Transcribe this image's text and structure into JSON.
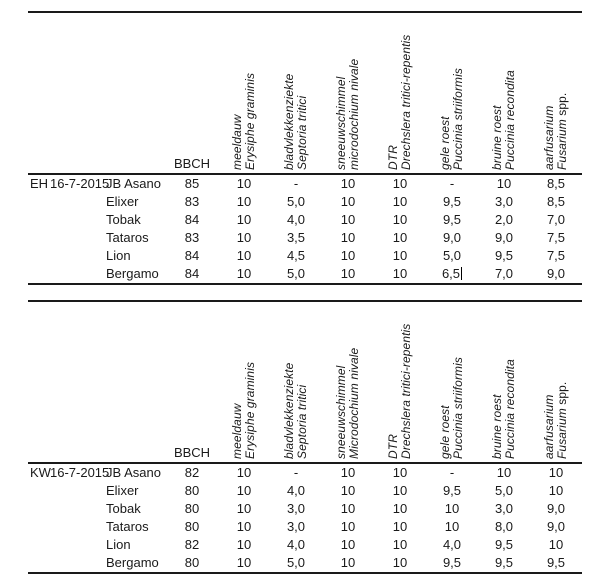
{
  "colors": {
    "background": "#ffffff",
    "text": "#1a1a1a",
    "rule": "#1a1a1a"
  },
  "tables": [
    {
      "site": "EH",
      "date": "16-7-2015",
      "bbch_label": "BBCH",
      "columns": [
        {
          "dutch": "meeldauw",
          "latin": "Erysiphe graminis"
        },
        {
          "dutch": "bladvlekkenziekte",
          "latin": "Septoria tritici"
        },
        {
          "dutch": "sneeuwschimmel",
          "latin": "microdochium nivale"
        },
        {
          "dutch": "DTR",
          "latin": "Drechslera tritici-repentis"
        },
        {
          "dutch": "gele roest",
          "latin": "Puccinia striiformis"
        },
        {
          "dutch": "bruine roest",
          "latin": "Puccinia recondita"
        },
        {
          "dutch": "aarfusarium",
          "latin": "Fusarium",
          "latin_suffix": "spp."
        }
      ],
      "rows": [
        {
          "variety": "JB Asano",
          "bbch": "85",
          "values": [
            "10",
            "-",
            "10",
            "10",
            "-",
            "10",
            "8,5"
          ]
        },
        {
          "variety": "Elixer",
          "bbch": "83",
          "values": [
            "10",
            "5,0",
            "10",
            "10",
            "9,5",
            "3,0",
            "8,5"
          ]
        },
        {
          "variety": "Tobak",
          "bbch": "84",
          "values": [
            "10",
            "4,0",
            "10",
            "10",
            "9,5",
            "2,0",
            "7,0"
          ]
        },
        {
          "variety": "Tataros",
          "bbch": "83",
          "values": [
            "10",
            "3,5",
            "10",
            "10",
            "9,0",
            "9,0",
            "7,5"
          ]
        },
        {
          "variety": "Lion",
          "bbch": "84",
          "values": [
            "10",
            "4,5",
            "10",
            "10",
            "5,0",
            "9,5",
            "7,5"
          ]
        },
        {
          "variety": "Bergamo",
          "bbch": "84",
          "values": [
            "10",
            "5,0",
            "10",
            "10",
            "6,5",
            "7,0",
            "9,0"
          ]
        }
      ],
      "cursor": {
        "row": 5,
        "col": 4
      }
    },
    {
      "site": "KW",
      "date": "16-7-2015",
      "bbch_label": "BBCH",
      "columns": [
        {
          "dutch": "meeldauw",
          "latin": "Erysiphe graminis"
        },
        {
          "dutch": "bladvlekkenziekte",
          "latin": "Septoria tritici"
        },
        {
          "dutch": "sneeuwschimmel",
          "latin": "Microdochium nivale"
        },
        {
          "dutch": "DTR",
          "latin": "Drechslera tritici-repentis"
        },
        {
          "dutch": "gele roest",
          "latin": "Puccinia striiformis"
        },
        {
          "dutch": "bruine roest",
          "latin": "Puccinia recondita"
        },
        {
          "dutch": "aarfusarium",
          "latin": "Fusarium",
          "latin_suffix": "spp."
        }
      ],
      "rows": [
        {
          "variety": "JB Asano",
          "bbch": "82",
          "values": [
            "10",
            "-",
            "10",
            "10",
            "-",
            "10",
            "10"
          ]
        },
        {
          "variety": "Elixer",
          "bbch": "80",
          "values": [
            "10",
            "4,0",
            "10",
            "10",
            "9,5",
            "5,0",
            "10"
          ]
        },
        {
          "variety": "Tobak",
          "bbch": "80",
          "values": [
            "10",
            "3,0",
            "10",
            "10",
            "10",
            "3,0",
            "9,0"
          ]
        },
        {
          "variety": "Tataros",
          "bbch": "80",
          "values": [
            "10",
            "3,0",
            "10",
            "10",
            "10",
            "8,0",
            "9,0"
          ]
        },
        {
          "variety": "Lion",
          "bbch": "82",
          "values": [
            "10",
            "4,0",
            "10",
            "10",
            "4,0",
            "9,5",
            "10"
          ]
        },
        {
          "variety": "Bergamo",
          "bbch": "80",
          "values": [
            "10",
            "5,0",
            "10",
            "10",
            "9,5",
            "9,5",
            "9,5"
          ]
        }
      ],
      "cursor": null
    }
  ]
}
